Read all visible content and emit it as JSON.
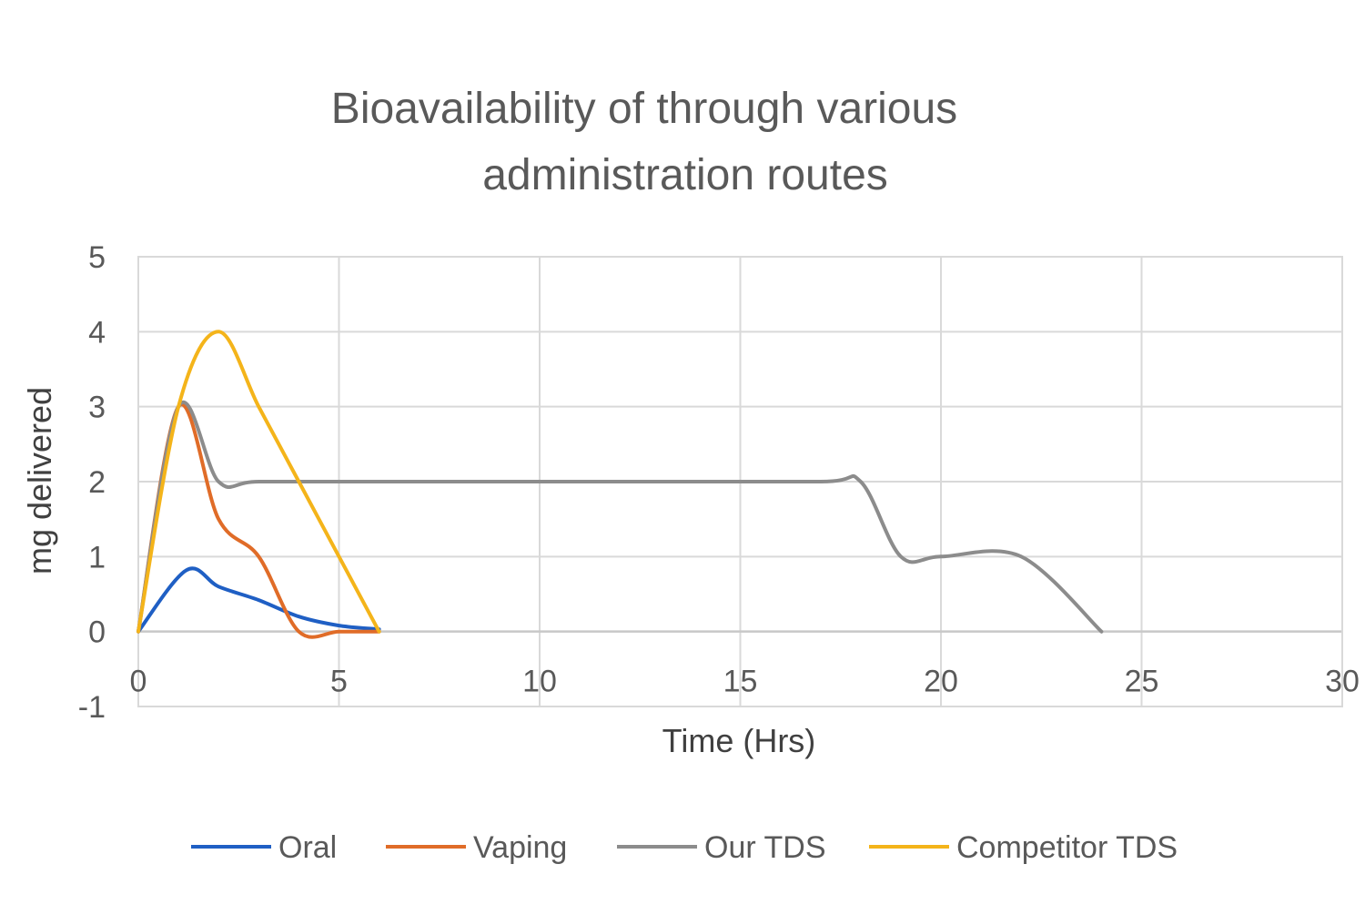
{
  "chart_data": {
    "type": "line",
    "title_lines": [
      "Bioavailability of through various",
      "administration routes"
    ],
    "xlabel": "Time (Hrs)",
    "ylabel": "mg delivered",
    "xlim": [
      0,
      30
    ],
    "ylim": [
      -1,
      5
    ],
    "x_ticks": [
      0,
      5,
      10,
      15,
      20,
      25,
      30
    ],
    "y_ticks": [
      -1,
      0,
      1,
      2,
      3,
      4,
      5
    ],
    "grid": true,
    "smooth": true,
    "legend_position": "bottom",
    "series": [
      {
        "name": "Oral",
        "color": "#1f5fc4",
        "points": [
          [
            0,
            0
          ],
          [
            1.2,
            0.82
          ],
          [
            2,
            0.6
          ],
          [
            3,
            0.42
          ],
          [
            4,
            0.2
          ],
          [
            5,
            0.08
          ],
          [
            6,
            0.03
          ]
        ]
      },
      {
        "name": "Vaping",
        "color": "#e06c28",
        "points": [
          [
            0,
            0
          ],
          [
            1,
            3.0
          ],
          [
            2,
            1.5
          ],
          [
            3,
            1.0
          ],
          [
            4,
            0.0
          ],
          [
            5,
            0.0
          ],
          [
            6,
            0.0
          ]
        ]
      },
      {
        "name": "Our TDS",
        "color": "#8c8c8c",
        "points": [
          [
            0,
            0
          ],
          [
            1,
            3.0
          ],
          [
            2,
            2.0
          ],
          [
            3,
            2.0
          ],
          [
            6,
            2.0
          ],
          [
            12,
            2.0
          ],
          [
            17,
            2.0
          ],
          [
            18,
            2.0
          ],
          [
            19,
            1.0
          ],
          [
            20,
            1.0
          ],
          [
            22,
            1.0
          ],
          [
            24,
            0.0
          ]
        ]
      },
      {
        "name": "Competitor TDS",
        "color": "#f4b41a",
        "points": [
          [
            0,
            0
          ],
          [
            1,
            3.0
          ],
          [
            2,
            4.0
          ],
          [
            3,
            3.0
          ],
          [
            4,
            2.0
          ],
          [
            5,
            1.0
          ],
          [
            6,
            0.0
          ]
        ]
      }
    ]
  }
}
